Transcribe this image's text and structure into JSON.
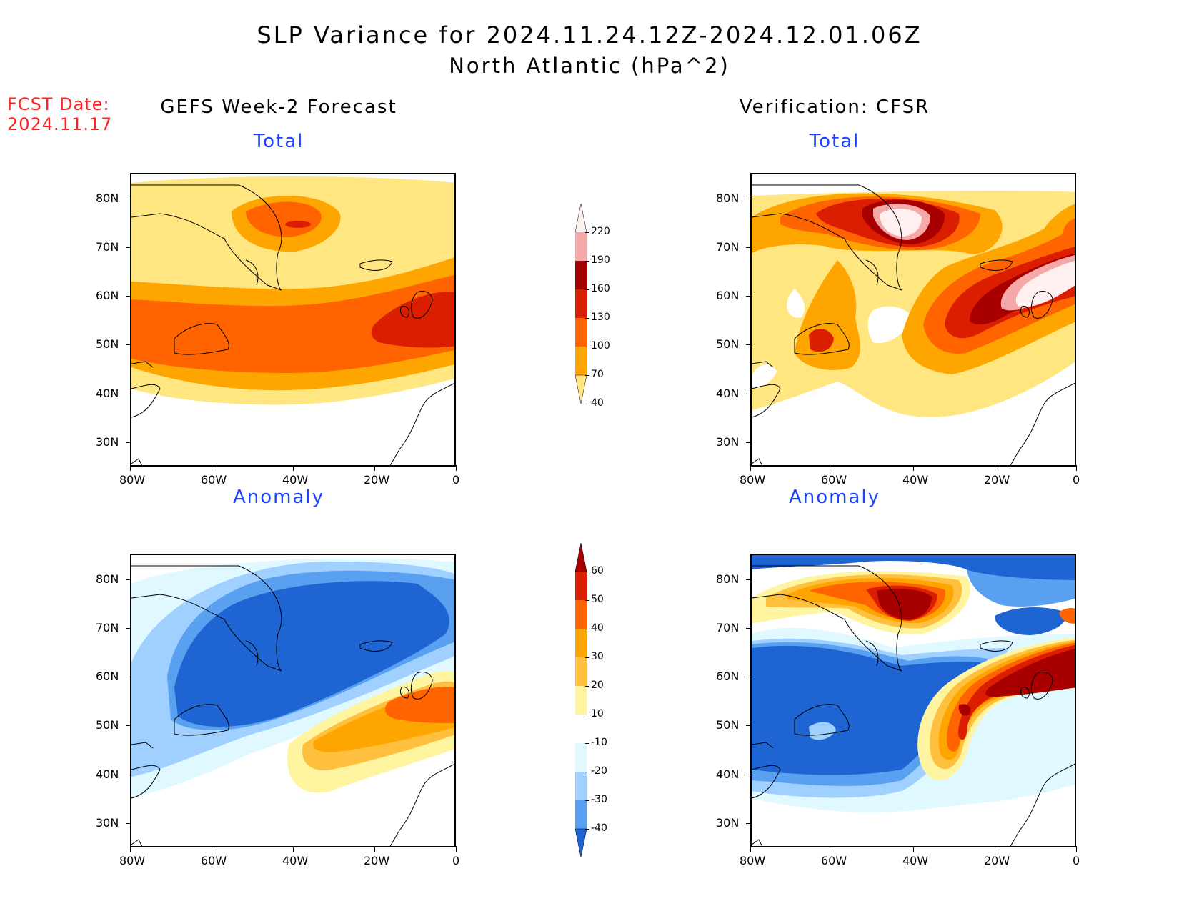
{
  "header": {
    "title_line1": "SLP Variance for 2024.11.24.12Z-2024.12.01.06Z",
    "title_line2": "North Atlantic (hPa^2)",
    "fcst_label": "FCST Date:",
    "fcst_date": "2024.11.17",
    "left_column_title": "GEFS Week-2 Forecast",
    "right_column_title": "Verification: CFSR"
  },
  "panels": {
    "forecast_total_title": "Total",
    "forecast_anomaly_title": "Anomaly",
    "verification_total_title": "Total",
    "verification_anomaly_title": "Anomaly"
  },
  "axes": {
    "lat_ticks": [
      "80N",
      "70N",
      "60N",
      "50N",
      "40N",
      "30N"
    ],
    "lon_ticks": [
      "80W",
      "60W",
      "40W",
      "20W",
      "0"
    ]
  },
  "colorbars": {
    "total": {
      "labels": [
        "220",
        "190",
        "160",
        "130",
        "100",
        "70",
        "40"
      ],
      "colors": [
        "#fff0f0",
        "#f4a8a8",
        "#a80000",
        "#dc1e00",
        "#ff6400",
        "#ffa500",
        "#ffe680"
      ]
    },
    "anomaly": {
      "labels": [
        "60",
        "50",
        "40",
        "30",
        "20",
        "10",
        "-10",
        "-20",
        "-30",
        "-40"
      ],
      "colors": [
        "#a80000",
        "#dc1e00",
        "#ff6400",
        "#ffa500",
        "#ffc040",
        "#fff5a0",
        "#ffffff",
        "#e0f8ff",
        "#a0d0ff",
        "#5aa0f0",
        "#1e64d2"
      ]
    }
  }
}
